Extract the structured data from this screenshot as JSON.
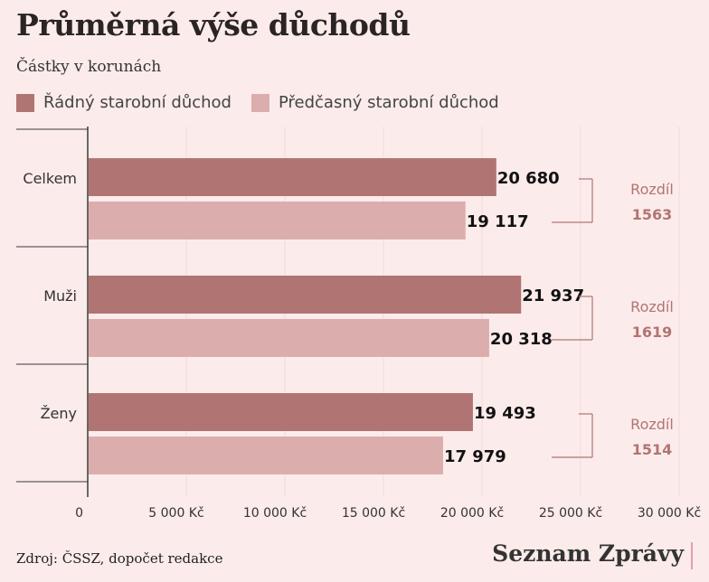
{
  "header": {
    "title": "Průměrná výše důchodů",
    "subtitle": "Částky v korunách"
  },
  "legend": [
    {
      "label": "Řádný starobní důchod",
      "color": "#b07572"
    },
    {
      "label": "Předčasný starobní důchod",
      "color": "#dcadad"
    }
  ],
  "chart_data": {
    "type": "bar",
    "orientation": "horizontal",
    "categories": [
      "Celkem",
      "Muži",
      "Ženy"
    ],
    "series": [
      {
        "name": "Řádný starobní důchod",
        "values": [
          20680,
          21937,
          19493
        ],
        "labels": [
          "20 680",
          "21 937",
          "19 493"
        ],
        "color": "#b07572"
      },
      {
        "name": "Předčasný starobní důchod",
        "values": [
          19117,
          20318,
          17979
        ],
        "labels": [
          "19 117",
          "20 318",
          "17 979"
        ],
        "color": "#dcadad"
      }
    ],
    "xlim": [
      0,
      32000
    ],
    "xticks": [
      0,
      5000,
      10000,
      15000,
      20000,
      25000,
      30000
    ],
    "xtick_labels": [
      "0",
      "5 000 Kč",
      "10 000 Kč",
      "15 000 Kč",
      "20 000 Kč",
      "25 000 Kč",
      "30 000 Kč"
    ],
    "grid": true,
    "annotations": [
      {
        "label": "Rozdíl",
        "value": "1563"
      },
      {
        "label": "Rozdíl",
        "value": "1619"
      },
      {
        "label": "Rozdíl",
        "value": "1514"
      }
    ],
    "annotation_color": "#b07572"
  },
  "footer": {
    "source": "Zdroj: ČSSZ, dopočet redakce",
    "brand": "Seznam Zprávy"
  }
}
